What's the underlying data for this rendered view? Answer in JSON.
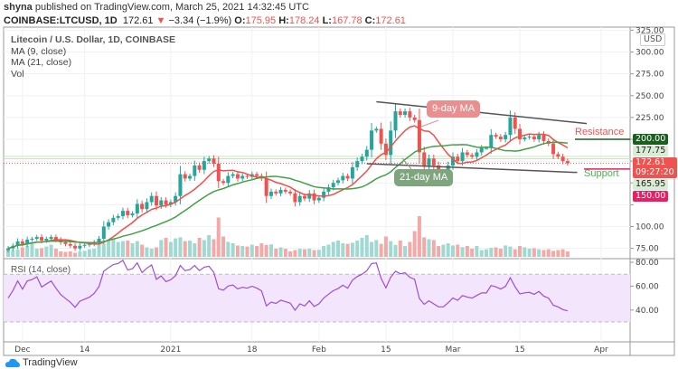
{
  "header": {
    "publisher": "shyna",
    "published_text": "published on TradingView.com, March 25, 2021 14:32:45 UTC",
    "symbol": "COINBASE:LTCUSD, 1D",
    "last": "172.61",
    "change": "−3.34 (−1.9%)",
    "o_label": "O:",
    "o": "175.95",
    "h_label": "H:",
    "h": "178.24",
    "l_label": "L:",
    "l": "167.78",
    "c_label": "C:",
    "c": "172.61"
  },
  "legend": {
    "title": "Litecoin / U.S. Dollar, 1D, COINBASE",
    "ma9": "MA (9, close)",
    "ma21": "MA (21, close)",
    "vol": "Vol"
  },
  "annotations": {
    "ma9": "9-day MA",
    "ma21": "21-day MA",
    "resistance": "Resistance",
    "support": "Support"
  },
  "price_tags": {
    "usd": "USD",
    "resistance": "200.00",
    "level1": "177.75",
    "last": "172.61",
    "countdown": "09:27:20",
    "support": "165.95",
    "level2": "150.00"
  },
  "colors": {
    "up": "#26a69a",
    "down": "#ef5350",
    "ma9": "#f0504a",
    "ma21": "#43a047",
    "rsi": "#9c4fd6",
    "resistance": "#1b5e20",
    "support_line": "#e91e63"
  },
  "chart_data": {
    "type": "candlestick",
    "title": "Litecoin / U.S. Dollar, 1D, COINBASE",
    "start_date": "2020-11-28",
    "ylim": [
      65,
      330
    ],
    "y_ticks": [
      "75.00",
      "100.00",
      "125.00",
      "150.00",
      "175.00",
      "200.00",
      "225.00",
      "250.00",
      "275.00",
      "300.00",
      "325.00"
    ],
    "x_ticks": [
      "Dec",
      "14",
      "2021",
      "18",
      "Feb",
      "15",
      "Mar",
      "15",
      "Apr"
    ],
    "closes": [
      75,
      78,
      83,
      80,
      85,
      86,
      88,
      84,
      86,
      88,
      85,
      82,
      80,
      78,
      75,
      78,
      79,
      80,
      82,
      86,
      100,
      105,
      110,
      112,
      118,
      113,
      115,
      126,
      120,
      128,
      135,
      124,
      130,
      125,
      128,
      135,
      160,
      155,
      158,
      170,
      165,
      175,
      178,
      172,
      152,
      150,
      158,
      160,
      155,
      158,
      157,
      160,
      158,
      155,
      135,
      140,
      138,
      142,
      140,
      138,
      128,
      135,
      132,
      138,
      130,
      133,
      140,
      145,
      150,
      153,
      158,
      155,
      168,
      175,
      180,
      188,
      210,
      212,
      195,
      182,
      210,
      232,
      228,
      232,
      225,
      222,
      185,
      170,
      178,
      170,
      162,
      162,
      170,
      180,
      175,
      185,
      182,
      180,
      185,
      190,
      190,
      205,
      203,
      200,
      205,
      225,
      212,
      200,
      202,
      203,
      200,
      205,
      198,
      195,
      183,
      180,
      175,
      172.61
    ],
    "volumes": [
      30,
      25,
      28,
      35,
      40,
      50,
      30,
      32,
      38,
      45,
      30,
      20,
      18,
      20,
      15,
      20,
      22,
      28,
      30,
      50,
      48,
      60,
      65,
      55,
      58,
      60,
      50,
      58,
      45,
      35,
      30,
      35,
      62,
      70,
      55,
      68,
      72,
      58,
      60,
      50,
      70,
      62,
      80,
      65,
      145,
      75,
      55,
      50,
      42,
      40,
      38,
      45,
      40,
      50,
      44,
      46,
      30,
      35,
      30,
      20,
      25,
      30,
      28,
      30,
      25,
      26,
      40,
      45,
      55,
      60,
      50,
      48,
      52,
      60,
      70,
      80,
      55,
      62,
      48,
      75,
      58,
      44,
      60,
      40,
      55,
      95,
      150,
      72,
      65,
      62,
      40,
      45,
      50,
      42,
      45,
      36,
      40,
      30,
      40,
      25,
      28,
      33,
      35,
      30,
      42,
      38,
      28,
      40,
      35,
      30,
      32,
      28,
      25,
      28,
      22,
      25,
      28,
      20
    ],
    "rsi": {
      "label": "RSI (14, close)",
      "ticks": [
        "40.00",
        "60.00",
        "80.00"
      ],
      "upper": 70,
      "lower": 30,
      "last": 37.5
    },
    "channel": {
      "top": [
        [
          "2021-02-13",
          243
        ],
        [
          "2021-03-29",
          218
        ]
      ],
      "bottom": [
        [
          "2021-02-11",
          172
        ],
        [
          "2021-03-27",
          162
        ]
      ]
    }
  }
}
